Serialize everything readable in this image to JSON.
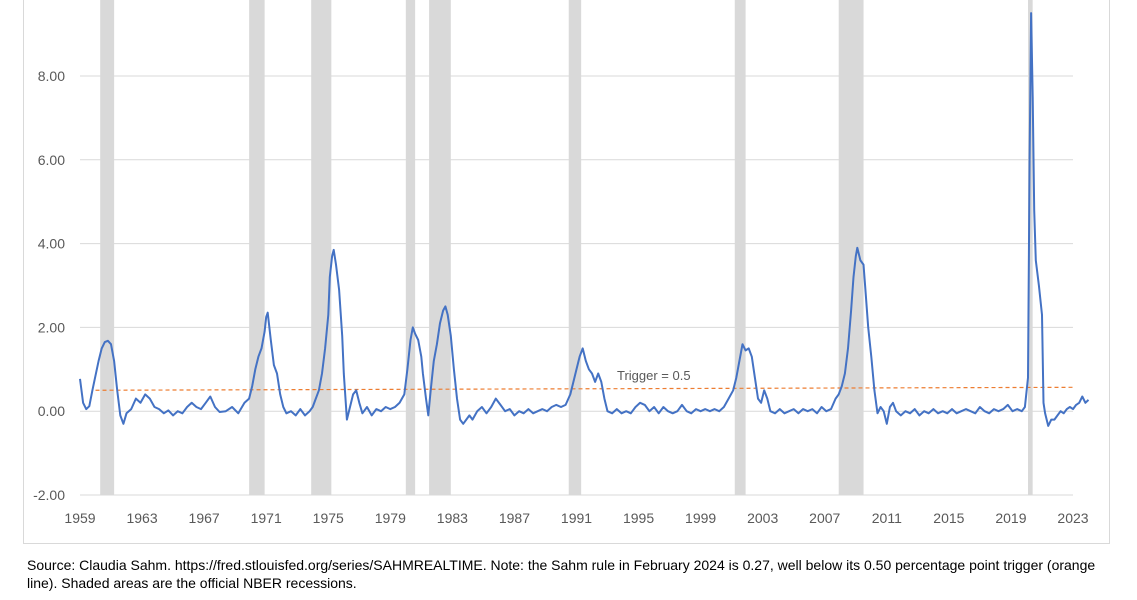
{
  "chart_data": {
    "type": "line",
    "title": "",
    "xlabel": "",
    "ylabel": "",
    "xlim": [
      1959.0,
      2024.0
    ],
    "ylim": [
      -2.0,
      9.8
    ],
    "grid": "horizontal",
    "x_ticks": [
      1959,
      1963,
      1967,
      1971,
      1975,
      1979,
      1983,
      1987,
      1991,
      1995,
      1999,
      2003,
      2007,
      2011,
      2015,
      2019,
      2023
    ],
    "x_tick_labels": [
      "1959",
      "1963",
      "1967",
      "1971",
      "1975",
      "1979",
      "1983",
      "1987",
      "1991",
      "1995",
      "1999",
      "2003",
      "2007",
      "2011",
      "2015",
      "2019",
      "2023"
    ],
    "y_ticks": [
      -2,
      0,
      2,
      4,
      6,
      8
    ],
    "y_tick_labels": [
      "-2.00",
      "0.00",
      "2.00",
      "4.00",
      "6.00",
      "8.00"
    ],
    "recessions": [
      [
        1960.3,
        1961.2
      ],
      [
        1969.9,
        1970.9
      ],
      [
        1973.9,
        1975.2
      ],
      [
        1980.0,
        1980.6
      ],
      [
        1981.5,
        1982.9
      ],
      [
        1990.5,
        1991.3
      ],
      [
        2001.2,
        2001.9
      ],
      [
        2007.9,
        2009.5
      ],
      [
        2020.1,
        2020.4
      ]
    ],
    "trigger": {
      "value": 0.5,
      "label": "Trigger = 0.5",
      "color": "#ED7D31"
    },
    "series": [
      {
        "color": "#4472C4",
        "points": [
          [
            1959.0,
            0.77
          ],
          [
            1959.2,
            0.2
          ],
          [
            1959.4,
            0.05
          ],
          [
            1959.6,
            0.12
          ],
          [
            1959.8,
            0.5
          ],
          [
            1960.0,
            0.85
          ],
          [
            1960.2,
            1.2
          ],
          [
            1960.4,
            1.5
          ],
          [
            1960.6,
            1.65
          ],
          [
            1960.8,
            1.68
          ],
          [
            1961.0,
            1.6
          ],
          [
            1961.2,
            1.2
          ],
          [
            1961.4,
            0.5
          ],
          [
            1961.6,
            -0.1
          ],
          [
            1961.8,
            -0.3
          ],
          [
            1962.0,
            -0.05
          ],
          [
            1962.3,
            0.05
          ],
          [
            1962.6,
            0.3
          ],
          [
            1962.9,
            0.2
          ],
          [
            1963.2,
            0.4
          ],
          [
            1963.5,
            0.3
          ],
          [
            1963.8,
            0.1
          ],
          [
            1964.1,
            0.05
          ],
          [
            1964.4,
            -0.05
          ],
          [
            1964.7,
            0.02
          ],
          [
            1965.0,
            -0.1
          ],
          [
            1965.3,
            0.0
          ],
          [
            1965.6,
            -0.05
          ],
          [
            1965.9,
            0.1
          ],
          [
            1966.2,
            0.2
          ],
          [
            1966.5,
            0.1
          ],
          [
            1966.8,
            0.05
          ],
          [
            1967.1,
            0.2
          ],
          [
            1967.4,
            0.35
          ],
          [
            1967.7,
            0.1
          ],
          [
            1968.0,
            -0.02
          ],
          [
            1968.4,
            0.0
          ],
          [
            1968.8,
            0.1
          ],
          [
            1969.2,
            -0.05
          ],
          [
            1969.6,
            0.2
          ],
          [
            1969.9,
            0.3
          ],
          [
            1970.1,
            0.6
          ],
          [
            1970.3,
            1.0
          ],
          [
            1970.5,
            1.3
          ],
          [
            1970.7,
            1.5
          ],
          [
            1970.9,
            1.9
          ],
          [
            1971.0,
            2.25
          ],
          [
            1971.1,
            2.35
          ],
          [
            1971.3,
            1.7
          ],
          [
            1971.5,
            1.1
          ],
          [
            1971.7,
            0.9
          ],
          [
            1971.9,
            0.4
          ],
          [
            1972.1,
            0.1
          ],
          [
            1972.3,
            -0.05
          ],
          [
            1972.6,
            0.0
          ],
          [
            1972.9,
            -0.1
          ],
          [
            1973.2,
            0.05
          ],
          [
            1973.5,
            -0.1
          ],
          [
            1973.8,
            0.0
          ],
          [
            1974.0,
            0.1
          ],
          [
            1974.2,
            0.3
          ],
          [
            1974.4,
            0.5
          ],
          [
            1974.6,
            0.9
          ],
          [
            1974.8,
            1.5
          ],
          [
            1975.0,
            2.3
          ],
          [
            1975.1,
            3.2
          ],
          [
            1975.25,
            3.7
          ],
          [
            1975.35,
            3.85
          ],
          [
            1975.5,
            3.5
          ],
          [
            1975.7,
            2.9
          ],
          [
            1975.9,
            1.8
          ],
          [
            1976.0,
            0.9
          ],
          [
            1976.2,
            -0.2
          ],
          [
            1976.4,
            0.1
          ],
          [
            1976.6,
            0.4
          ],
          [
            1976.8,
            0.5
          ],
          [
            1977.0,
            0.2
          ],
          [
            1977.2,
            -0.05
          ],
          [
            1977.5,
            0.1
          ],
          [
            1977.8,
            -0.1
          ],
          [
            1978.1,
            0.05
          ],
          [
            1978.4,
            0.0
          ],
          [
            1978.7,
            0.1
          ],
          [
            1979.0,
            0.05
          ],
          [
            1979.3,
            0.1
          ],
          [
            1979.6,
            0.2
          ],
          [
            1979.9,
            0.4
          ],
          [
            1980.1,
            1.0
          ],
          [
            1980.3,
            1.7
          ],
          [
            1980.45,
            2.0
          ],
          [
            1980.6,
            1.85
          ],
          [
            1980.8,
            1.7
          ],
          [
            1981.0,
            1.3
          ],
          [
            1981.1,
            0.9
          ],
          [
            1981.3,
            0.3
          ],
          [
            1981.45,
            -0.1
          ],
          [
            1981.6,
            0.5
          ],
          [
            1981.8,
            1.2
          ],
          [
            1982.0,
            1.6
          ],
          [
            1982.2,
            2.1
          ],
          [
            1982.4,
            2.4
          ],
          [
            1982.55,
            2.5
          ],
          [
            1982.7,
            2.3
          ],
          [
            1982.9,
            1.8
          ],
          [
            1983.1,
            1.0
          ],
          [
            1983.3,
            0.3
          ],
          [
            1983.5,
            -0.2
          ],
          [
            1983.7,
            -0.3
          ],
          [
            1983.9,
            -0.2
          ],
          [
            1984.1,
            -0.1
          ],
          [
            1984.3,
            -0.2
          ],
          [
            1984.6,
            0.0
          ],
          [
            1984.9,
            0.1
          ],
          [
            1985.2,
            -0.05
          ],
          [
            1985.5,
            0.1
          ],
          [
            1985.8,
            0.3
          ],
          [
            1986.1,
            0.15
          ],
          [
            1986.4,
            0.0
          ],
          [
            1986.7,
            0.05
          ],
          [
            1987.0,
            -0.1
          ],
          [
            1987.3,
            0.0
          ],
          [
            1987.6,
            -0.05
          ],
          [
            1987.9,
            0.05
          ],
          [
            1988.2,
            -0.05
          ],
          [
            1988.5,
            0.0
          ],
          [
            1988.8,
            0.05
          ],
          [
            1989.1,
            0.0
          ],
          [
            1989.4,
            0.1
          ],
          [
            1989.7,
            0.15
          ],
          [
            1990.0,
            0.1
          ],
          [
            1990.3,
            0.15
          ],
          [
            1990.6,
            0.4
          ],
          [
            1990.8,
            0.7
          ],
          [
            1991.0,
            1.0
          ],
          [
            1991.2,
            1.3
          ],
          [
            1991.4,
            1.5
          ],
          [
            1991.6,
            1.2
          ],
          [
            1991.8,
            1.0
          ],
          [
            1992.0,
            0.9
          ],
          [
            1992.2,
            0.7
          ],
          [
            1992.4,
            0.9
          ],
          [
            1992.6,
            0.7
          ],
          [
            1992.8,
            0.3
          ],
          [
            1993.0,
            0.0
          ],
          [
            1993.3,
            -0.05
          ],
          [
            1993.6,
            0.05
          ],
          [
            1993.9,
            -0.05
          ],
          [
            1994.2,
            0.0
          ],
          [
            1994.5,
            -0.05
          ],
          [
            1994.8,
            0.1
          ],
          [
            1995.1,
            0.2
          ],
          [
            1995.4,
            0.15
          ],
          [
            1995.7,
            0.0
          ],
          [
            1996.0,
            0.1
          ],
          [
            1996.3,
            -0.05
          ],
          [
            1996.6,
            0.1
          ],
          [
            1996.9,
            0.0
          ],
          [
            1997.2,
            -0.05
          ],
          [
            1997.5,
            0.0
          ],
          [
            1997.8,
            0.15
          ],
          [
            1998.1,
            0.0
          ],
          [
            1998.4,
            -0.05
          ],
          [
            1998.7,
            0.05
          ],
          [
            1999.0,
            0.0
          ],
          [
            1999.3,
            0.05
          ],
          [
            1999.6,
            0.0
          ],
          [
            1999.9,
            0.05
          ],
          [
            2000.2,
            0.0
          ],
          [
            2000.5,
            0.1
          ],
          [
            2000.8,
            0.3
          ],
          [
            2001.1,
            0.5
          ],
          [
            2001.3,
            0.8
          ],
          [
            2001.5,
            1.2
          ],
          [
            2001.7,
            1.6
          ],
          [
            2001.9,
            1.45
          ],
          [
            2002.1,
            1.5
          ],
          [
            2002.3,
            1.3
          ],
          [
            2002.5,
            0.8
          ],
          [
            2002.7,
            0.3
          ],
          [
            2002.9,
            0.2
          ],
          [
            2003.1,
            0.5
          ],
          [
            2003.3,
            0.3
          ],
          [
            2003.5,
            0.0
          ],
          [
            2003.8,
            -0.05
          ],
          [
            2004.1,
            0.05
          ],
          [
            2004.4,
            -0.05
          ],
          [
            2004.7,
            0.0
          ],
          [
            2005.0,
            0.05
          ],
          [
            2005.3,
            -0.05
          ],
          [
            2005.6,
            0.05
          ],
          [
            2005.9,
            0.0
          ],
          [
            2006.2,
            0.05
          ],
          [
            2006.5,
            -0.05
          ],
          [
            2006.8,
            0.1
          ],
          [
            2007.1,
            0.0
          ],
          [
            2007.4,
            0.05
          ],
          [
            2007.7,
            0.3
          ],
          [
            2007.9,
            0.4
          ],
          [
            2008.1,
            0.6
          ],
          [
            2008.3,
            0.9
          ],
          [
            2008.5,
            1.5
          ],
          [
            2008.7,
            2.4
          ],
          [
            2008.85,
            3.2
          ],
          [
            2009.0,
            3.7
          ],
          [
            2009.1,
            3.9
          ],
          [
            2009.3,
            3.6
          ],
          [
            2009.5,
            3.5
          ],
          [
            2009.6,
            3.0
          ],
          [
            2009.8,
            2.0
          ],
          [
            2010.0,
            1.3
          ],
          [
            2010.2,
            0.5
          ],
          [
            2010.4,
            -0.05
          ],
          [
            2010.6,
            0.1
          ],
          [
            2010.8,
            0.0
          ],
          [
            2011.0,
            -0.3
          ],
          [
            2011.2,
            0.1
          ],
          [
            2011.4,
            0.2
          ],
          [
            2011.6,
            0.0
          ],
          [
            2011.9,
            -0.1
          ],
          [
            2012.2,
            0.0
          ],
          [
            2012.5,
            -0.05
          ],
          [
            2012.8,
            0.05
          ],
          [
            2013.1,
            -0.1
          ],
          [
            2013.4,
            0.0
          ],
          [
            2013.7,
            -0.05
          ],
          [
            2014.0,
            0.05
          ],
          [
            2014.3,
            -0.05
          ],
          [
            2014.6,
            0.0
          ],
          [
            2014.9,
            -0.05
          ],
          [
            2015.2,
            0.05
          ],
          [
            2015.5,
            -0.05
          ],
          [
            2015.8,
            0.0
          ],
          [
            2016.1,
            0.05
          ],
          [
            2016.4,
            0.0
          ],
          [
            2016.7,
            -0.05
          ],
          [
            2017.0,
            0.1
          ],
          [
            2017.3,
            0.0
          ],
          [
            2017.6,
            -0.05
          ],
          [
            2017.9,
            0.05
          ],
          [
            2018.2,
            0.0
          ],
          [
            2018.5,
            0.05
          ],
          [
            2018.8,
            0.15
          ],
          [
            2019.1,
            0.0
          ],
          [
            2019.4,
            0.05
          ],
          [
            2019.7,
            0.0
          ],
          [
            2019.9,
            0.1
          ],
          [
            2020.1,
            0.8
          ],
          [
            2020.2,
            6.0
          ],
          [
            2020.3,
            9.5
          ],
          [
            2020.4,
            7.5
          ],
          [
            2020.5,
            4.8
          ],
          [
            2020.6,
            3.6
          ],
          [
            2020.8,
            3.0
          ],
          [
            2021.0,
            2.3
          ],
          [
            2021.1,
            0.2
          ],
          [
            2021.2,
            -0.05
          ],
          [
            2021.4,
            -0.35
          ],
          [
            2021.6,
            -0.2
          ],
          [
            2021.8,
            -0.2
          ],
          [
            2022.0,
            -0.1
          ],
          [
            2022.2,
            0.0
          ],
          [
            2022.4,
            -0.05
          ],
          [
            2022.6,
            0.05
          ],
          [
            2022.8,
            0.1
          ],
          [
            2023.0,
            0.05
          ],
          [
            2023.2,
            0.15
          ],
          [
            2023.4,
            0.2
          ],
          [
            2023.6,
            0.35
          ],
          [
            2023.8,
            0.2
          ],
          [
            2024.0,
            0.27
          ]
        ]
      }
    ]
  },
  "footnote": "Source: Claudia Sahm. https://fred.stlouisfed.org/series/SAHMREALTIME. Note: the Sahm rule in February 2024 is 0.27, well below its 0.50 percentage point trigger (orange line). Shaded areas are the official NBER recessions."
}
